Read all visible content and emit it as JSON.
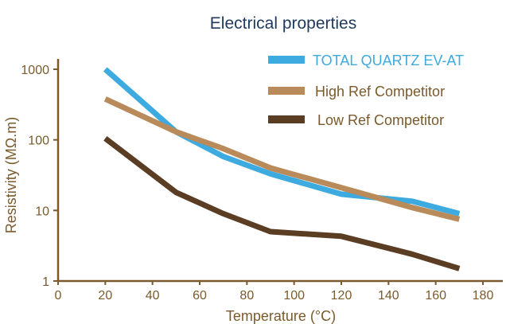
{
  "chart_data": {
    "type": "line",
    "title": "Electrical properties",
    "xlabel": "Temperature (°C)",
    "ylabel": "Resistivity (MΩ.m)",
    "x_ticks": [
      "0",
      "20",
      "40",
      "60",
      "80",
      "100",
      "120",
      "140",
      "160",
      "180"
    ],
    "y_ticks": [
      "1",
      "10",
      "100",
      "1000"
    ],
    "xlim": [
      0,
      180
    ],
    "ylim": [
      1,
      1000
    ],
    "y_scale": "log",
    "grid": false,
    "legend_position": "top-right",
    "series": [
      {
        "name": "TOTAL QUARTZ EV-AT",
        "color": "#3daae0",
        "x": [
          20,
          50,
          70,
          90,
          120,
          150,
          170
        ],
        "y": [
          1000,
          130,
          58,
          33,
          17,
          13.5,
          9
        ]
      },
      {
        "name": "High Ref Competitor",
        "color": "#b98a5a",
        "x": [
          20,
          50,
          70,
          90,
          120,
          150,
          170
        ],
        "y": [
          380,
          130,
          75,
          40,
          21,
          11,
          7.5
        ]
      },
      {
        "name": "Low Ref Competitor",
        "color": "#5a3d22",
        "x": [
          20,
          50,
          70,
          90,
          120,
          150,
          170
        ],
        "y": [
          105,
          18,
          9,
          5,
          4.3,
          2.4,
          1.5
        ]
      }
    ]
  },
  "colors": {
    "axis": "#7a5a2c",
    "title": "#1f3a5f"
  }
}
